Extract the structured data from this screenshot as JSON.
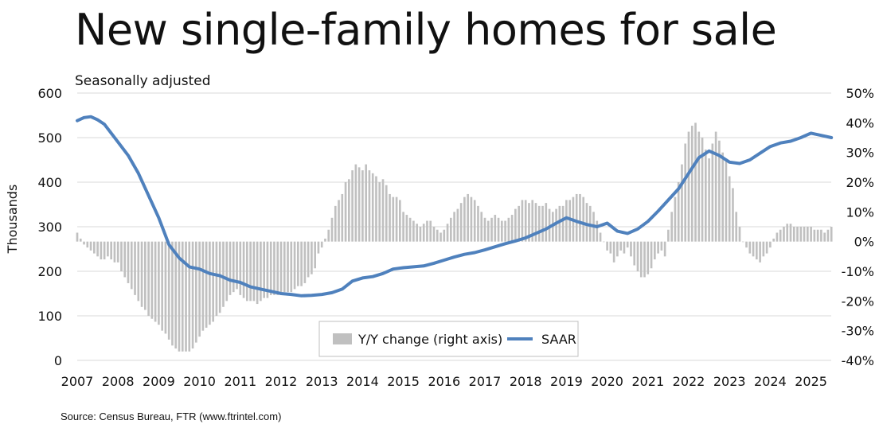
{
  "chart_data": {
    "type": "bar+line",
    "title": "New single-family homes for sale",
    "subtitle": "Seasonally adjusted",
    "ylabel_left": "Thousands",
    "source": "Source: Census Bureau, FTR (www.ftrintel.com)",
    "x_ticks": [
      "2007",
      "2008",
      "2009",
      "2010",
      "2011",
      "2012",
      "2013",
      "2014",
      "2015",
      "2016",
      "2017",
      "2018",
      "2019",
      "2020",
      "2021",
      "2022",
      "2023",
      "2024",
      "2025"
    ],
    "y_left_ticks": [
      "0",
      "100",
      "200",
      "300",
      "400",
      "500",
      "600"
    ],
    "y_right_ticks": [
      "-40%",
      "-30%",
      "-20%",
      "-10%",
      "0%",
      "10%",
      "20%",
      "30%",
      "40%",
      "50%"
    ],
    "ylim_left": [
      0,
      600
    ],
    "ylim_right": [
      -40,
      50
    ],
    "x_range": [
      "2007-01",
      "2025-07"
    ],
    "grid": "horizontal",
    "legend": {
      "position": "bottom-center",
      "items": [
        "Y/Y change (right axis)",
        "SAAR"
      ]
    },
    "colors": {
      "bars": "#c0c0c0",
      "line": "#4f81bd",
      "grid": "#d9d9d9"
    },
    "series": [
      {
        "name": "SAAR",
        "kind": "line",
        "axis": "left",
        "points": [
          [
            "2007-01",
            538
          ],
          [
            "2007-03",
            545
          ],
          [
            "2007-05",
            547
          ],
          [
            "2007-07",
            540
          ],
          [
            "2007-09",
            530
          ],
          [
            "2007-10",
            520
          ],
          [
            "2008-01",
            490
          ],
          [
            "2008-04",
            460
          ],
          [
            "2008-07",
            420
          ],
          [
            "2008-10",
            370
          ],
          [
            "2009-01",
            320
          ],
          [
            "2009-04",
            260
          ],
          [
            "2009-07",
            230
          ],
          [
            "2009-10",
            210
          ],
          [
            "2010-01",
            205
          ],
          [
            "2010-04",
            195
          ],
          [
            "2010-07",
            190
          ],
          [
            "2010-10",
            180
          ],
          [
            "2011-01",
            175
          ],
          [
            "2011-04",
            165
          ],
          [
            "2011-07",
            160
          ],
          [
            "2011-10",
            155
          ],
          [
            "2012-01",
            150
          ],
          [
            "2012-04",
            148
          ],
          [
            "2012-07",
            145
          ],
          [
            "2012-10",
            146
          ],
          [
            "2013-01",
            148
          ],
          [
            "2013-04",
            152
          ],
          [
            "2013-07",
            160
          ],
          [
            "2013-10",
            178
          ],
          [
            "2014-01",
            185
          ],
          [
            "2014-04",
            188
          ],
          [
            "2014-07",
            195
          ],
          [
            "2014-10",
            205
          ],
          [
            "2015-01",
            208
          ],
          [
            "2015-04",
            210
          ],
          [
            "2015-07",
            212
          ],
          [
            "2015-10",
            218
          ],
          [
            "2016-01",
            225
          ],
          [
            "2016-04",
            232
          ],
          [
            "2016-07",
            238
          ],
          [
            "2016-10",
            242
          ],
          [
            "2017-01",
            248
          ],
          [
            "2017-04",
            255
          ],
          [
            "2017-07",
            262
          ],
          [
            "2017-10",
            268
          ],
          [
            "2018-01",
            275
          ],
          [
            "2018-04",
            285
          ],
          [
            "2018-07",
            295
          ],
          [
            "2018-10",
            308
          ],
          [
            "2019-01",
            320
          ],
          [
            "2019-04",
            312
          ],
          [
            "2019-07",
            305
          ],
          [
            "2019-10",
            300
          ],
          [
            "2020-01",
            308
          ],
          [
            "2020-04",
            290
          ],
          [
            "2020-07",
            285
          ],
          [
            "2020-10",
            295
          ],
          [
            "2021-01",
            312
          ],
          [
            "2021-04",
            335
          ],
          [
            "2021-07",
            360
          ],
          [
            "2021-10",
            385
          ],
          [
            "2022-01",
            420
          ],
          [
            "2022-04",
            455
          ],
          [
            "2022-07",
            470
          ],
          [
            "2022-10",
            460
          ],
          [
            "2023-01",
            445
          ],
          [
            "2023-04",
            442
          ],
          [
            "2023-07",
            450
          ],
          [
            "2023-10",
            465
          ],
          [
            "2024-01",
            480
          ],
          [
            "2024-04",
            488
          ],
          [
            "2024-07",
            492
          ],
          [
            "2024-10",
            500
          ],
          [
            "2025-01",
            510
          ],
          [
            "2025-04",
            505
          ],
          [
            "2025-07",
            500
          ]
        ]
      },
      {
        "name": "Y/Y change (right axis)",
        "kind": "bar",
        "axis": "right",
        "values": [
          3,
          1,
          -1,
          -2,
          -3,
          -4,
          -5,
          -6,
          -6,
          -5,
          -6,
          -7,
          -7,
          -10,
          -12,
          -14,
          -16,
          -18,
          -20,
          -22,
          -23,
          -25,
          -26,
          -27,
          -28,
          -30,
          -31,
          -33,
          -35,
          -36,
          -37,
          -37,
          -37,
          -37,
          -36,
          -34,
          -32,
          -30,
          -29,
          -28,
          -27,
          -25,
          -24,
          -22,
          -20,
          -18,
          -17,
          -16,
          -18,
          -19,
          -20,
          -20,
          -20,
          -21,
          -20,
          -19,
          -19,
          -18,
          -18,
          -18,
          -17,
          -17,
          -17,
          -17,
          -16,
          -15,
          -15,
          -14,
          -12,
          -11,
          -9,
          -4,
          -2,
          1,
          4,
          8,
          12,
          14,
          16,
          20,
          21,
          24,
          26,
          25,
          24,
          26,
          24,
          23,
          22,
          20,
          21,
          19,
          16,
          15,
          15,
          14,
          10,
          9,
          8,
          7,
          6,
          5,
          6,
          7,
          7,
          5,
          4,
          3,
          4,
          6,
          8,
          10,
          11,
          13,
          15,
          16,
          15,
          14,
          12,
          10,
          8,
          7,
          8,
          9,
          8,
          7,
          7,
          8,
          9,
          11,
          12,
          14,
          14,
          13,
          14,
          13,
          12,
          12,
          13,
          11,
          10,
          11,
          12,
          12,
          14,
          14,
          15,
          16,
          16,
          15,
          13,
          12,
          10,
          7,
          3,
          0,
          -3,
          -4,
          -7,
          -5,
          -3,
          -4,
          -2,
          -5,
          -8,
          -10,
          -12,
          -12,
          -11,
          -9,
          -6,
          -4,
          -3,
          -5,
          4,
          10,
          15,
          20,
          26,
          33,
          37,
          39,
          40,
          37,
          35,
          31,
          28,
          33,
          37,
          34,
          30,
          27,
          22,
          18,
          10,
          5,
          0,
          -2,
          -4,
          -5,
          -6,
          -7,
          -5,
          -4,
          -2,
          1,
          3,
          4,
          5,
          6,
          6,
          5,
          5,
          5,
          5,
          5,
          5,
          4,
          4,
          4,
          3,
          4,
          5
        ]
      }
    ]
  }
}
